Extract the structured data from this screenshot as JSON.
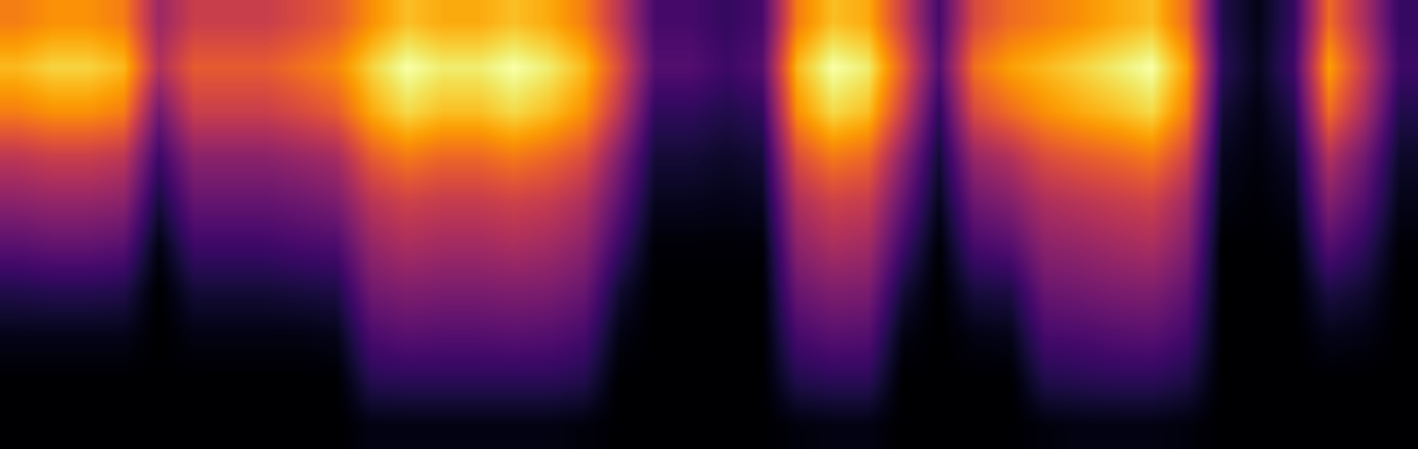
{
  "chart_data": {
    "type": "heatmap",
    "color": "inferno",
    "tick_labels": false,
    "cells": [
      [
        0.68,
        0.72,
        0.72,
        0.68,
        0.4,
        0.51,
        0.51,
        0.51,
        0.55,
        0.6,
        0.72,
        0.81,
        0.77,
        0.77,
        0.81,
        0.77,
        0.68,
        0.47,
        0.2,
        0.2,
        0.16,
        0.2,
        0.68,
        0.81,
        0.77,
        0.51,
        0.2,
        0.55,
        0.64,
        0.68,
        0.72,
        0.77,
        0.81,
        0.64,
        0.12,
        0.04,
        0.16,
        0.64,
        0.43,
        0.16
      ],
      [
        0.8,
        0.85,
        0.85,
        0.8,
        0.45,
        0.6,
        0.6,
        0.6,
        0.65,
        0.7,
        0.85,
        0.95,
        0.9,
        0.9,
        0.95,
        0.9,
        0.8,
        0.55,
        0.23,
        0.23,
        0.18,
        0.23,
        0.8,
        0.95,
        0.9,
        0.6,
        0.23,
        0.65,
        0.75,
        0.8,
        0.85,
        0.9,
        0.95,
        0.75,
        0.14,
        0.05,
        0.18,
        0.75,
        0.5,
        0.18
      ],
      [
        0.68,
        0.72,
        0.72,
        0.68,
        0.3,
        0.51,
        0.51,
        0.51,
        0.55,
        0.6,
        0.77,
        0.86,
        0.81,
        0.81,
        0.86,
        0.81,
        0.72,
        0.47,
        0.15,
        0.15,
        0.12,
        0.15,
        0.72,
        0.86,
        0.81,
        0.51,
        0.15,
        0.55,
        0.64,
        0.72,
        0.77,
        0.81,
        0.86,
        0.68,
        0.09,
        0.03,
        0.12,
        0.64,
        0.43,
        0.12
      ],
      [
        0.48,
        0.51,
        0.51,
        0.48,
        0.18,
        0.36,
        0.36,
        0.36,
        0.39,
        0.42,
        0.6,
        0.67,
        0.63,
        0.63,
        0.67,
        0.63,
        0.56,
        0.33,
        0.09,
        0.09,
        0.07,
        0.09,
        0.56,
        0.67,
        0.63,
        0.36,
        0.09,
        0.39,
        0.45,
        0.56,
        0.6,
        0.63,
        0.67,
        0.53,
        0.05,
        0.02,
        0.07,
        0.45,
        0.3,
        0.07
      ],
      [
        0.36,
        0.38,
        0.38,
        0.36,
        0.1,
        0.27,
        0.27,
        0.27,
        0.29,
        0.32,
        0.47,
        0.52,
        0.5,
        0.5,
        0.52,
        0.5,
        0.44,
        0.25,
        0.05,
        0.05,
        0.04,
        0.05,
        0.44,
        0.52,
        0.5,
        0.27,
        0.05,
        0.29,
        0.34,
        0.44,
        0.47,
        0.5,
        0.52,
        0.41,
        0.03,
        0.01,
        0.04,
        0.34,
        0.23,
        0.04
      ],
      [
        0.24,
        0.26,
        0.26,
        0.24,
        0.03,
        0.18,
        0.18,
        0.18,
        0.2,
        0.21,
        0.38,
        0.43,
        0.41,
        0.41,
        0.43,
        0.41,
        0.36,
        0.17,
        0.01,
        0.01,
        0.01,
        0.01,
        0.36,
        0.43,
        0.41,
        0.18,
        0.01,
        0.2,
        0.23,
        0.36,
        0.38,
        0.41,
        0.43,
        0.34,
        0,
        0,
        0.01,
        0.23,
        0.15,
        0.01
      ],
      [
        0.12,
        0.13,
        0.13,
        0.12,
        0,
        0.09,
        0.09,
        0.09,
        0.1,
        0.11,
        0.3,
        0.33,
        0.32,
        0.32,
        0.33,
        0.32,
        0.28,
        0.08,
        0,
        0,
        0,
        0,
        0.28,
        0.33,
        0.32,
        0.09,
        0,
        0.1,
        0.11,
        0.28,
        0.3,
        0.32,
        0.33,
        0.26,
        0,
        0,
        0,
        0.11,
        0.08,
        0
      ],
      [
        0.04,
        0.04,
        0.04,
        0.04,
        0,
        0.03,
        0.03,
        0.03,
        0.03,
        0.04,
        0.21,
        0.24,
        0.23,
        0.23,
        0.24,
        0.23,
        0.2,
        0.03,
        0,
        0,
        0,
        0,
        0.2,
        0.24,
        0.23,
        0.03,
        0,
        0.03,
        0.04,
        0.2,
        0.21,
        0.23,
        0.24,
        0.19,
        0,
        0,
        0,
        0.04,
        0.03,
        0
      ],
      [
        0,
        0,
        0,
        0,
        0,
        0,
        0,
        0,
        0,
        0,
        0.13,
        0.14,
        0.14,
        0.14,
        0.14,
        0.14,
        0.12,
        0,
        0,
        0,
        0,
        0,
        0.12,
        0.14,
        0.14,
        0,
        0,
        0,
        0,
        0.12,
        0.13,
        0.14,
        0.14,
        0.11,
        0,
        0,
        0,
        0,
        0,
        0
      ],
      [
        0,
        0,
        0,
        0,
        0,
        0,
        0,
        0,
        0,
        0,
        0.03,
        0.03,
        0.03,
        0.03,
        0.03,
        0.03,
        0.02,
        0,
        0,
        0,
        0,
        0,
        0.02,
        0.03,
        0.03,
        0,
        0,
        0,
        0,
        0.02,
        0.03,
        0.03,
        0.03,
        0.02,
        0,
        0,
        0,
        0,
        0,
        0
      ]
    ]
  }
}
